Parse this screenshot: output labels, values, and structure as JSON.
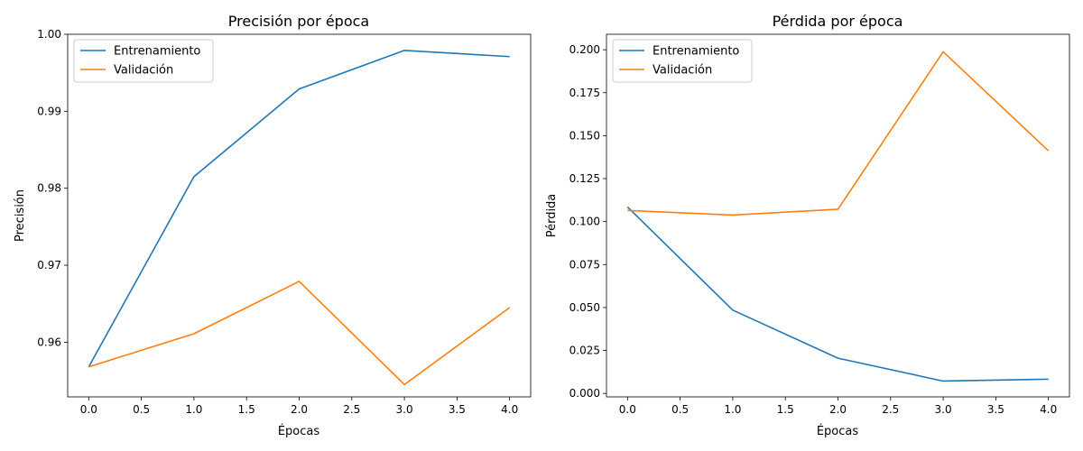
{
  "chart_data": [
    {
      "type": "line",
      "title": "Precisión por época",
      "xlabel": "Épocas",
      "ylabel": "Precisión",
      "xlim": [
        -0.2,
        4.2
      ],
      "ylim": [
        0.9529,
        1.0
      ],
      "xticks": [
        0.0,
        0.5,
        1.0,
        1.5,
        2.0,
        2.5,
        3.0,
        3.5,
        4.0
      ],
      "xtick_labels": [
        "0.0",
        "0.5",
        "1.0",
        "1.5",
        "2.0",
        "2.5",
        "3.0",
        "3.5",
        "4.0"
      ],
      "yticks": [
        0.96,
        0.97,
        0.98,
        0.99,
        1.0
      ],
      "ytick_labels": [
        "0.96",
        "0.97",
        "0.98",
        "0.99",
        "1.00"
      ],
      "grid": false,
      "legend": "top-left",
      "series": [
        {
          "name": "Entrenamiento",
          "color": "#1f77b4",
          "x": [
            0,
            1,
            2,
            3,
            4
          ],
          "y": [
            0.9568,
            0.9815,
            0.9929,
            0.9979,
            0.9971
          ]
        },
        {
          "name": "Validación",
          "color": "#ff7f0e",
          "x": [
            0,
            1,
            2,
            3,
            4
          ],
          "y": [
            0.9568,
            0.9611,
            0.9679,
            0.9545,
            0.9645
          ]
        }
      ]
    },
    {
      "type": "line",
      "title": "Pérdida por época",
      "xlabel": "Épocas",
      "ylabel": "Pérdida",
      "xlim": [
        -0.2,
        4.2
      ],
      "ylim": [
        -0.002,
        0.209
      ],
      "xticks": [
        0.0,
        0.5,
        1.0,
        1.5,
        2.0,
        2.5,
        3.0,
        3.5,
        4.0
      ],
      "xtick_labels": [
        "0.0",
        "0.5",
        "1.0",
        "1.5",
        "2.0",
        "2.5",
        "3.0",
        "3.5",
        "4.0"
      ],
      "yticks": [
        0.0,
        0.025,
        0.05,
        0.075,
        0.1,
        0.125,
        0.15,
        0.175,
        0.2
      ],
      "ytick_labels": [
        "0.000",
        "0.025",
        "0.050",
        "0.075",
        "0.100",
        "0.125",
        "0.150",
        "0.175",
        "0.200"
      ],
      "grid": false,
      "legend": "top-left",
      "series": [
        {
          "name": "Entrenamiento",
          "color": "#1f77b4",
          "x": [
            0,
            1,
            2,
            3,
            4
          ],
          "y": [
            0.1085,
            0.0485,
            0.0205,
            0.0072,
            0.0083
          ]
        },
        {
          "name": "Validación",
          "color": "#ff7f0e",
          "x": [
            0,
            1,
            2,
            3,
            4
          ],
          "y": [
            0.1065,
            0.1038,
            0.1072,
            0.1988,
            0.1412
          ]
        }
      ]
    }
  ]
}
